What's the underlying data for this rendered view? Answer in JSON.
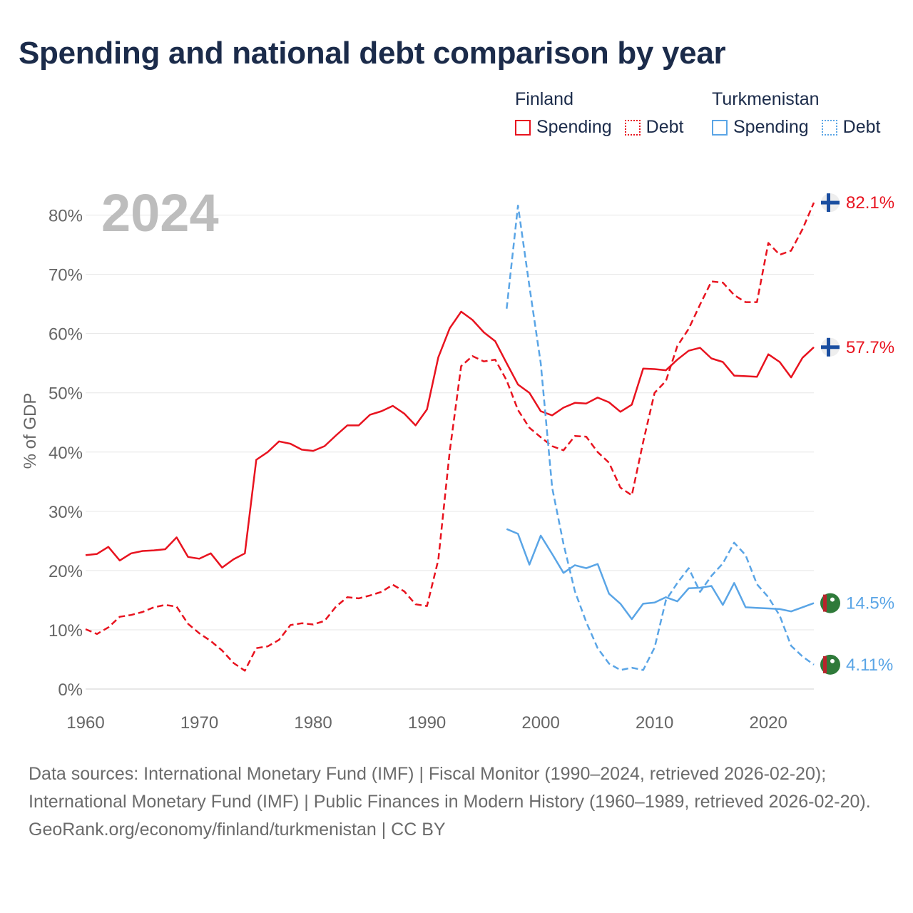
{
  "title": "Spending and national debt comparison by year",
  "legend": {
    "groups": [
      {
        "name": "Finland",
        "items": [
          {
            "label": "Spending",
            "color": "#e8131f",
            "style": "solid"
          },
          {
            "label": "Debt",
            "color": "#e8131f",
            "style": "dotted"
          }
        ]
      },
      {
        "name": "Turkmenistan",
        "items": [
          {
            "label": "Spending",
            "color": "#5aa5e6",
            "style": "solid"
          },
          {
            "label": "Debt",
            "color": "#5aa5e6",
            "style": "dotted"
          }
        ]
      }
    ]
  },
  "year_label": "2024",
  "footer": {
    "sources": "Data sources: International Monetary Fund (IMF) | Fiscal Monitor (1990–2024, retrieved 2026-02-20); International Monetary Fund (IMF) | Public Finances in Modern History (1960–1989, retrieved 2026-02-20).",
    "credit": "GeoRank.org/economy/finland/turkmenistan | CC BY"
  },
  "chart_data": {
    "type": "line",
    "title": "Spending and national debt comparison by year",
    "xlabel": "",
    "ylabel": "% of GDP",
    "xlim": [
      1960,
      2024
    ],
    "ylim": [
      0,
      85
    ],
    "x_ticks": [
      1960,
      1970,
      1980,
      1990,
      2000,
      2010,
      2020
    ],
    "y_ticks": [
      0,
      10,
      20,
      30,
      40,
      50,
      60,
      70,
      80
    ],
    "y_tick_labels": [
      "0%",
      "10%",
      "20%",
      "30%",
      "40%",
      "50%",
      "60%",
      "70%",
      "80%"
    ],
    "grid": true,
    "series": [
      {
        "name": "Finland Spending",
        "country": "Finland",
        "metric": "Spending",
        "color": "#e8131f",
        "dash": false,
        "end_label": "57.7%",
        "x": [
          1960,
          1961,
          1962,
          1963,
          1964,
          1965,
          1966,
          1967,
          1968,
          1969,
          1970,
          1971,
          1972,
          1973,
          1974,
          1975,
          1976,
          1977,
          1978,
          1979,
          1980,
          1981,
          1982,
          1983,
          1984,
          1985,
          1986,
          1987,
          1988,
          1989,
          1990,
          1991,
          1992,
          1993,
          1994,
          1995,
          1996,
          1997,
          1998,
          1999,
          2000,
          2001,
          2002,
          2003,
          2004,
          2005,
          2006,
          2007,
          2008,
          2009,
          2010,
          2011,
          2012,
          2013,
          2014,
          2015,
          2016,
          2017,
          2018,
          2019,
          2020,
          2021,
          2022,
          2023,
          2024
        ],
        "values": [
          22.6,
          22.8,
          24.0,
          21.7,
          22.9,
          23.3,
          23.4,
          23.6,
          25.6,
          22.3,
          22.0,
          22.9,
          20.5,
          21.9,
          22.9,
          38.7,
          40.0,
          41.8,
          41.4,
          40.4,
          40.2,
          41.0,
          42.8,
          44.5,
          44.5,
          46.3,
          46.9,
          47.8,
          46.5,
          44.5,
          47.2,
          56.0,
          60.9,
          63.7,
          62.3,
          60.2,
          58.7,
          55.0,
          51.4,
          50.0,
          46.9,
          46.2,
          47.5,
          48.3,
          48.2,
          49.2,
          48.4,
          46.8,
          48.0,
          54.1,
          54.0,
          53.8,
          55.6,
          57.1,
          57.6,
          55.8,
          55.2,
          52.9,
          52.8,
          52.7,
          56.5,
          55.2,
          52.6,
          55.9,
          57.7
        ]
      },
      {
        "name": "Finland Debt",
        "country": "Finland",
        "metric": "Debt",
        "color": "#e8131f",
        "dash": true,
        "end_label": "82.1%",
        "x": [
          1960,
          1961,
          1962,
          1963,
          1964,
          1965,
          1966,
          1967,
          1968,
          1969,
          1970,
          1971,
          1972,
          1973,
          1974,
          1975,
          1976,
          1977,
          1978,
          1979,
          1980,
          1981,
          1982,
          1983,
          1984,
          1985,
          1986,
          1987,
          1988,
          1989,
          1990,
          1991,
          1992,
          1993,
          1994,
          1995,
          1996,
          1997,
          1998,
          1999,
          2000,
          2001,
          2002,
          2003,
          2004,
          2005,
          2006,
          2007,
          2008,
          2009,
          2010,
          2011,
          2012,
          2013,
          2014,
          2015,
          2016,
          2017,
          2018,
          2019,
          2020,
          2021,
          2022,
          2023,
          2024
        ],
        "values": [
          10.1,
          9.3,
          10.4,
          12.2,
          12.5,
          13.0,
          13.8,
          14.2,
          13.9,
          11.0,
          9.4,
          8.1,
          6.5,
          4.4,
          3.1,
          6.9,
          7.2,
          8.3,
          10.8,
          11.1,
          10.9,
          11.5,
          13.9,
          15.5,
          15.3,
          15.8,
          16.4,
          17.6,
          16.5,
          14.3,
          14.0,
          21.8,
          40.1,
          54.5,
          56.2,
          55.3,
          55.6,
          52.1,
          47.1,
          44.1,
          42.5,
          41.0,
          40.3,
          42.7,
          42.6,
          40.0,
          38.2,
          34.0,
          32.7,
          41.7,
          50.0,
          52.0,
          57.9,
          60.8,
          64.9,
          68.8,
          68.6,
          66.5,
          65.3,
          65.3,
          75.3,
          73.3,
          74.0,
          77.6,
          82.1
        ]
      },
      {
        "name": "Turkmenistan Spending",
        "country": "Turkmenistan",
        "metric": "Spending",
        "color": "#5aa5e6",
        "dash": false,
        "end_label": "14.5%",
        "x": [
          1997,
          1998,
          1999,
          2000,
          2001,
          2002,
          2003,
          2004,
          2005,
          2006,
          2007,
          2008,
          2009,
          2010,
          2011,
          2012,
          2013,
          2014,
          2015,
          2016,
          2017,
          2018,
          2019,
          2020,
          2021,
          2022,
          2023,
          2024
        ],
        "values": [
          27.0,
          26.2,
          21.0,
          25.9,
          22.8,
          19.6,
          20.9,
          20.4,
          21.1,
          16.1,
          14.4,
          11.8,
          14.4,
          14.6,
          15.5,
          14.8,
          17.0,
          17.1,
          17.4,
          14.2,
          17.9,
          13.8,
          13.7,
          13.6,
          13.5,
          13.1,
          13.8,
          14.5
        ]
      },
      {
        "name": "Turkmenistan Debt",
        "country": "Turkmenistan",
        "metric": "Debt",
        "color": "#5aa5e6",
        "dash": true,
        "end_label": "4.11%",
        "x": [
          1997,
          1998,
          1999,
          2000,
          2001,
          2002,
          2003,
          2004,
          2005,
          2006,
          2007,
          2008,
          2009,
          2010,
          2011,
          2012,
          2013,
          2014,
          2015,
          2016,
          2017,
          2018,
          2019,
          2020,
          2021,
          2022,
          2023,
          2024
        ],
        "values": [
          64.2,
          81.6,
          68.0,
          55.0,
          34.0,
          24.5,
          16.5,
          11.3,
          6.9,
          4.3,
          3.2,
          3.6,
          3.2,
          7.0,
          15.0,
          17.9,
          20.4,
          16.4,
          19.1,
          21.2,
          24.7,
          22.6,
          17.7,
          15.5,
          12.4,
          7.3,
          5.5,
          4.11
        ]
      }
    ]
  }
}
